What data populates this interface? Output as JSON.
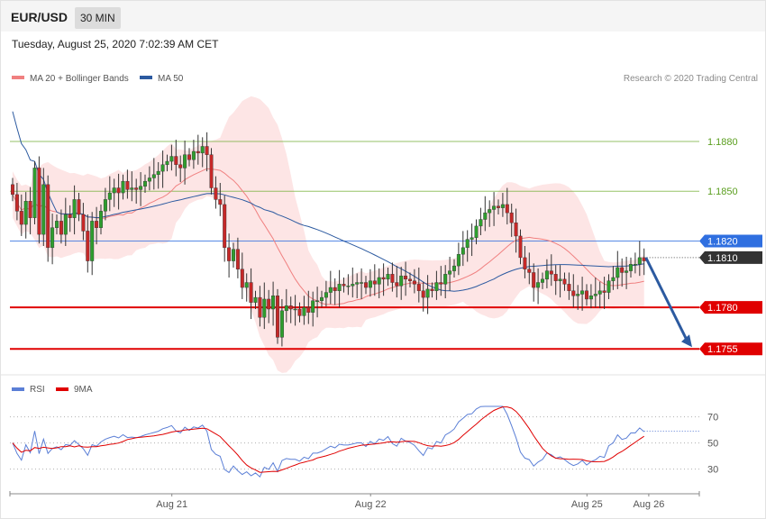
{
  "header": {
    "symbol": "EUR/USD",
    "timeframe": "30 MIN",
    "datetime": "Tuesday, August 25, 2020 7:02:39 AM CET"
  },
  "legend": {
    "main": [
      {
        "label": "MA 20 + Bollinger Bands",
        "color": "#f08080"
      },
      {
        "label": "MA 50",
        "color": "#2c5aa0"
      }
    ],
    "rsi": [
      {
        "label": "RSI",
        "color": "#5b7fd6"
      },
      {
        "label": "9MA",
        "color": "#e00000"
      }
    ]
  },
  "credit": "Research © 2020 Trading Central",
  "chart_data": [
    {
      "type": "candlestick",
      "title": "",
      "ylim": [
        1.1741,
        1.1912
      ],
      "x_labels": [
        "Aug 21",
        "Aug 22",
        "Aug 25",
        "Aug 26"
      ],
      "levels": [
        {
          "label": "1.1880",
          "value": 1.188,
          "color": "#7cb342",
          "style": "thin"
        },
        {
          "label": "1.1850",
          "value": 1.185,
          "color": "#7cb342",
          "style": "thin"
        },
        {
          "label": "1.1820",
          "value": 1.182,
          "color": "#2f6fe0",
          "style": "thin"
        },
        {
          "label": "1.1780",
          "value": 1.178,
          "color": "#e00000",
          "style": "thick"
        },
        {
          "label": "1.1755",
          "value": 1.1755,
          "color": "#e00000",
          "style": "thick"
        }
      ],
      "current_price": {
        "label": "1.1810",
        "value": 1.181,
        "color": "#333333"
      },
      "forecast_arrow": {
        "from_value": 1.181,
        "to_value": 1.1755,
        "color": "#2c5aa0"
      },
      "close": [
        1.1848,
        1.1838,
        1.183,
        1.1844,
        1.1834,
        1.1864,
        1.1824,
        1.1854,
        1.1816,
        1.1828,
        1.1832,
        1.1824,
        1.1836,
        1.1834,
        1.1845,
        1.1836,
        1.1826,
        1.1808,
        1.1832,
        1.1828,
        1.1838,
        1.1845,
        1.1849,
        1.1852,
        1.1849,
        1.1856,
        1.1851,
        1.1852,
        1.1851,
        1.1853,
        1.1856,
        1.1858,
        1.186,
        1.1862,
        1.1866,
        1.1868,
        1.1871,
        1.1866,
        1.1864,
        1.1872,
        1.1869,
        1.1874,
        1.1873,
        1.1877,
        1.1872,
        1.1852,
        1.1845,
        1.1842,
        1.1816,
        1.1808,
        1.1815,
        1.1803,
        1.1792,
        1.1795,
        1.1783,
        1.1786,
        1.1774,
        1.1785,
        1.1779,
        1.1787,
        1.1762,
        1.1778,
        1.1781,
        1.1779,
        1.1779,
        1.1775,
        1.178,
        1.1777,
        1.1784,
        1.1784,
        1.1786,
        1.1789,
        1.1792,
        1.179,
        1.1794,
        1.1793,
        1.1793,
        1.1794,
        1.1795,
        1.1795,
        1.1792,
        1.1796,
        1.1794,
        1.1798,
        1.1797,
        1.18,
        1.1795,
        1.1793,
        1.1799,
        1.1797,
        1.1796,
        1.1794,
        1.179,
        1.1786,
        1.1791,
        1.179,
        1.1795,
        1.1794,
        1.18,
        1.1802,
        1.1805,
        1.1812,
        1.1816,
        1.1821,
        1.1822,
        1.1829,
        1.1833,
        1.1837,
        1.1839,
        1.1841,
        1.184,
        1.1842,
        1.1837,
        1.1831,
        1.1823,
        1.181,
        1.1803,
        1.1801,
        1.1792,
        1.1795,
        1.1797,
        1.1802,
        1.18,
        1.1796,
        1.1797,
        1.1794,
        1.179,
        1.1787,
        1.1788,
        1.179,
        1.1785,
        1.1787,
        1.1788,
        1.179,
        1.1789,
        1.1796,
        1.1798,
        1.1804,
        1.1801,
        1.1802,
        1.1806,
        1.1806,
        1.181,
        1.1808
      ],
      "rsi": {
        "ylim": [
          18,
          78
        ],
        "ticks": [
          {
            "label": "70",
            "value": 70
          },
          {
            "label": "50",
            "value": 50
          },
          {
            "label": "30",
            "value": 30
          }
        ],
        "last_value": 59
      }
    }
  ]
}
